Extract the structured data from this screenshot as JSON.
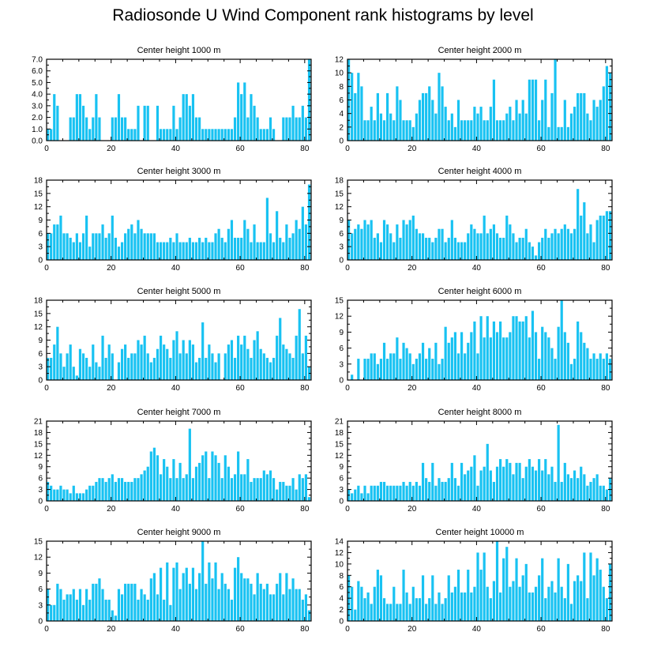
{
  "title": "Radiosonde U Wind Component rank histograms by level",
  "colors": {
    "bar": "#18c2f2",
    "axis": "#000000",
    "background": "#ffffff"
  },
  "chart_data": [
    {
      "type": "bar",
      "title": "Center height 1000 m",
      "xlim": [
        0,
        82
      ],
      "ylim": [
        0,
        7
      ],
      "yticks": [
        0,
        1,
        2,
        3,
        4,
        5,
        6,
        7
      ],
      "ytick_labels": [
        "0.0",
        "1.0",
        "2.0",
        "3.0",
        "4.0",
        "5.0",
        "6.0",
        "7.0"
      ],
      "xticks": [
        0,
        20,
        40,
        60,
        80
      ],
      "bin_start": 0,
      "values": [
        1,
        1,
        4,
        3,
        0,
        0,
        0,
        2,
        2,
        4,
        4,
        3,
        2,
        1,
        2,
        4,
        2,
        0,
        0,
        0,
        2,
        2,
        4,
        2,
        2,
        1,
        1,
        1,
        3,
        0,
        3,
        3,
        0,
        0,
        3,
        1,
        1,
        1,
        1,
        3,
        1,
        2,
        4,
        4,
        3,
        4,
        2,
        2,
        1,
        1,
        1,
        1,
        1,
        1,
        1,
        1,
        1,
        1,
        2,
        5,
        4,
        5,
        2,
        4,
        3,
        2,
        1,
        1,
        1,
        2,
        1,
        0,
        0,
        2,
        2,
        2,
        3,
        2,
        2,
        3,
        2,
        7
      ]
    },
    {
      "type": "bar",
      "title": "Center height 2000 m",
      "xlim": [
        0,
        82
      ],
      "ylim": [
        0,
        12
      ],
      "yticks": [
        0,
        2,
        4,
        6,
        8,
        10,
        12
      ],
      "ytick_labels": [
        "0",
        "2",
        "4",
        "6",
        "8",
        "10",
        "12"
      ],
      "xticks": [
        0,
        20,
        40,
        60,
        80
      ],
      "bin_start": 0,
      "values": [
        12,
        10,
        7,
        10,
        8,
        3,
        3,
        5,
        3,
        7,
        4,
        3,
        7,
        4,
        3,
        8,
        6,
        3,
        3,
        3,
        2,
        4,
        6,
        7,
        7,
        8,
        6,
        4,
        10,
        8,
        5,
        3,
        4,
        2,
        6,
        3,
        3,
        3,
        3,
        5,
        4,
        5,
        3,
        3,
        5,
        9,
        3,
        3,
        3,
        4,
        5,
        3,
        6,
        4,
        6,
        4,
        9,
        9,
        9,
        3,
        6,
        9,
        2,
        7,
        12,
        2,
        2,
        6,
        2,
        4,
        5,
        7,
        7,
        7,
        4,
        3,
        6,
        5,
        6,
        8,
        11,
        10
      ]
    },
    {
      "type": "bar",
      "title": "Center height 3000 m",
      "xlim": [
        0,
        82
      ],
      "ylim": [
        0,
        18
      ],
      "yticks": [
        0,
        3,
        6,
        9,
        12,
        15,
        18
      ],
      "ytick_labels": [
        "0",
        "3",
        "6",
        "9",
        "12",
        "15",
        "18"
      ],
      "xticks": [
        0,
        20,
        40,
        60,
        80
      ],
      "bin_start": 0,
      "values": [
        6,
        6,
        8,
        8,
        10,
        6,
        6,
        5,
        4,
        6,
        4,
        6,
        10,
        3,
        6,
        6,
        6,
        8,
        5,
        6,
        10,
        5,
        3,
        4,
        6,
        7,
        8,
        6,
        9,
        7,
        6,
        6,
        6,
        6,
        4,
        4,
        4,
        4,
        5,
        4,
        6,
        4,
        4,
        4,
        5,
        4,
        4,
        5,
        4,
        5,
        4,
        4,
        6,
        7,
        5,
        4,
        7,
        9,
        5,
        5,
        5,
        9,
        7,
        4,
        8,
        4,
        4,
        4,
        14,
        6,
        4,
        11,
        5,
        4,
        8,
        5,
        6,
        9,
        7,
        12,
        8,
        17
      ]
    },
    {
      "type": "bar",
      "title": "Center height 4000 m",
      "xlim": [
        0,
        82
      ],
      "ylim": [
        0,
        18
      ],
      "yticks": [
        0,
        3,
        6,
        9,
        12,
        15,
        18
      ],
      "ytick_labels": [
        "0",
        "3",
        "6",
        "9",
        "12",
        "15",
        "18"
      ],
      "xticks": [
        0,
        20,
        40,
        60,
        80
      ],
      "bin_start": 0,
      "values": [
        9,
        6,
        7,
        8,
        7,
        9,
        8,
        9,
        5,
        6,
        4,
        9,
        8,
        6,
        4,
        8,
        5,
        9,
        8,
        9,
        10,
        7,
        6,
        6,
        5,
        5,
        4,
        5,
        7,
        7,
        4,
        5,
        9,
        5,
        4,
        4,
        4,
        6,
        8,
        7,
        6,
        6,
        10,
        6,
        7,
        8,
        6,
        5,
        5,
        10,
        8,
        6,
        4,
        5,
        5,
        7,
        4,
        3,
        1,
        4,
        5,
        7,
        5,
        6,
        7,
        6,
        7,
        8,
        7,
        6,
        7,
        16,
        10,
        13,
        6,
        8,
        4,
        9,
        10,
        10,
        11,
        11
      ]
    },
    {
      "type": "bar",
      "title": "Center height 5000 m",
      "xlim": [
        0,
        82
      ],
      "ylim": [
        0,
        18
      ],
      "yticks": [
        0,
        3,
        6,
        9,
        12,
        15,
        18
      ],
      "ytick_labels": [
        "0",
        "3",
        "6",
        "9",
        "12",
        "15",
        "18"
      ],
      "xticks": [
        0,
        20,
        40,
        60,
        80
      ],
      "bin_start": 0,
      "values": [
        5,
        5,
        8,
        12,
        6,
        3,
        6,
        8,
        3,
        1,
        7,
        6,
        5,
        3,
        8,
        4,
        3,
        10,
        5,
        8,
        6,
        0,
        4,
        7,
        8,
        5,
        6,
        6,
        9,
        8,
        10,
        6,
        4,
        5,
        7,
        10,
        8,
        7,
        5,
        9,
        11,
        6,
        9,
        6,
        9,
        8,
        4,
        5,
        13,
        5,
        8,
        6,
        4,
        6,
        0,
        6,
        8,
        9,
        5,
        10,
        8,
        10,
        7,
        5,
        9,
        11,
        7,
        6,
        5,
        4,
        5,
        10,
        14,
        8,
        7,
        6,
        5,
        10,
        16,
        6,
        10,
        3
      ]
    },
    {
      "type": "bar",
      "title": "Center height 6000 m",
      "xlim": [
        0,
        82
      ],
      "ylim": [
        0,
        15
      ],
      "yticks": [
        0,
        3,
        6,
        9,
        12,
        15
      ],
      "ytick_labels": [
        "0",
        "3",
        "6",
        "9",
        "12",
        "15"
      ],
      "xticks": [
        0,
        20,
        40,
        60,
        80
      ],
      "bin_start": 0,
      "values": [
        0,
        1,
        0,
        4,
        0,
        4,
        4,
        5,
        5,
        3,
        4,
        7,
        4,
        5,
        5,
        8,
        4,
        7,
        6,
        5,
        3,
        4,
        5,
        7,
        4,
        6,
        4,
        7,
        3,
        4,
        10,
        7,
        8,
        9,
        5,
        9,
        5,
        7,
        9,
        11,
        5,
        12,
        8,
        12,
        8,
        11,
        9,
        11,
        8,
        8,
        9,
        12,
        12,
        11,
        11,
        12,
        8,
        13,
        9,
        4,
        10,
        9,
        8,
        6,
        4,
        10,
        15,
        9,
        7,
        3,
        4,
        11,
        9,
        7,
        6,
        4,
        5,
        4,
        5,
        4,
        5,
        4
      ]
    },
    {
      "type": "bar",
      "title": "Center height 7000 m",
      "xlim": [
        0,
        82
      ],
      "ylim": [
        0,
        21
      ],
      "yticks": [
        0,
        3,
        6,
        9,
        12,
        15,
        18,
        21
      ],
      "ytick_labels": [
        "0",
        "3",
        "6",
        "9",
        "12",
        "15",
        "18",
        "21"
      ],
      "xticks": [
        0,
        20,
        40,
        60,
        80
      ],
      "bin_start": 0,
      "values": [
        5,
        4,
        3,
        3,
        4,
        3,
        3,
        2,
        4,
        2,
        2,
        2,
        3,
        4,
        4,
        5,
        6,
        6,
        5,
        6,
        7,
        5,
        6,
        6,
        5,
        5,
        5,
        6,
        6,
        7,
        8,
        9,
        13,
        14,
        12,
        7,
        11,
        9,
        6,
        11,
        6,
        10,
        6,
        7,
        19,
        6,
        9,
        10,
        12,
        13,
        6,
        13,
        12,
        10,
        6,
        12,
        9,
        6,
        7,
        13,
        7,
        7,
        11,
        5,
        6,
        6,
        6,
        8,
        7,
        8,
        6,
        3,
        5,
        5,
        4,
        4,
        6,
        3,
        7,
        6,
        7,
        1
      ]
    },
    {
      "type": "bar",
      "title": "Center height 8000 m",
      "xlim": [
        0,
        82
      ],
      "ylim": [
        0,
        21
      ],
      "yticks": [
        0,
        3,
        6,
        9,
        12,
        15,
        18,
        21
      ],
      "ytick_labels": [
        "0",
        "3",
        "6",
        "9",
        "12",
        "15",
        "18",
        "21"
      ],
      "xticks": [
        0,
        20,
        40,
        60,
        80
      ],
      "bin_start": 0,
      "values": [
        3,
        2,
        3,
        4,
        2,
        4,
        2,
        4,
        4,
        4,
        5,
        5,
        4,
        4,
        4,
        4,
        4,
        5,
        4,
        5,
        4,
        5,
        4,
        10,
        6,
        5,
        10,
        4,
        6,
        5,
        5,
        6,
        10,
        6,
        4,
        10,
        7,
        8,
        9,
        12,
        4,
        8,
        9,
        15,
        8,
        5,
        9,
        11,
        9,
        11,
        10,
        7,
        10,
        10,
        6,
        9,
        11,
        9,
        8,
        11,
        8,
        11,
        7,
        9,
        5,
        20,
        5,
        10,
        7,
        6,
        8,
        6,
        9,
        7,
        4,
        5,
        6,
        7,
        4,
        4,
        3,
        6
      ]
    },
    {
      "type": "bar",
      "title": "Center height 9000 m",
      "xlim": [
        0,
        82
      ],
      "ylim": [
        0,
        15
      ],
      "yticks": [
        0,
        3,
        6,
        9,
        12,
        15
      ],
      "ytick_labels": [
        "0",
        "3",
        "6",
        "9",
        "12",
        "15"
      ],
      "xticks": [
        0,
        20,
        40,
        60,
        80
      ],
      "bin_start": 0,
      "values": [
        6,
        3,
        3,
        7,
        6,
        4,
        5,
        5,
        6,
        4,
        6,
        3,
        6,
        4,
        7,
        7,
        8,
        6,
        4,
        4,
        2,
        1,
        6,
        5,
        7,
        7,
        7,
        7,
        4,
        6,
        5,
        4,
        8,
        9,
        5,
        10,
        4,
        11,
        3,
        10,
        11,
        6,
        9,
        10,
        7,
        10,
        6,
        9,
        15,
        7,
        11,
        8,
        11,
        6,
        9,
        7,
        6,
        4,
        10,
        12,
        9,
        8,
        8,
        7,
        5,
        9,
        7,
        6,
        7,
        5,
        5,
        7,
        9,
        5,
        9,
        6,
        8,
        6,
        6,
        4,
        5,
        2
      ]
    },
    {
      "type": "bar",
      "title": "Center height 10000 m",
      "xlim": [
        0,
        82
      ],
      "ylim": [
        0,
        14
      ],
      "yticks": [
        0,
        2,
        4,
        6,
        8,
        10,
        12,
        14
      ],
      "ytick_labels": [
        "0",
        "2",
        "4",
        "6",
        "8",
        "10",
        "12",
        "14"
      ],
      "xticks": [
        0,
        20,
        40,
        60,
        80
      ],
      "bin_start": 0,
      "values": [
        8,
        6,
        2,
        7,
        6,
        4,
        5,
        3,
        6,
        9,
        8,
        4,
        3,
        3,
        6,
        3,
        3,
        9,
        5,
        3,
        6,
        4,
        4,
        8,
        3,
        4,
        8,
        3,
        5,
        3,
        4,
        8,
        5,
        6,
        9,
        5,
        5,
        9,
        5,
        6,
        12,
        9,
        12,
        6,
        4,
        7,
        14,
        5,
        11,
        13,
        6,
        7,
        11,
        6,
        8,
        10,
        5,
        5,
        6,
        8,
        11,
        4,
        6,
        7,
        5,
        11,
        6,
        4,
        10,
        3,
        7,
        8,
        7,
        12,
        4,
        12,
        8,
        11,
        9,
        6,
        4,
        10
      ]
    }
  ]
}
